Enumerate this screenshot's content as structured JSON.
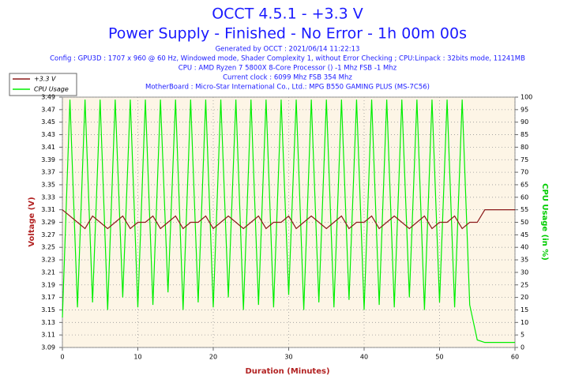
{
  "chart_data": {
    "type": "line",
    "title": "OCCT 4.5.1 - +3.3 V",
    "subtitle": "Power Supply - Finished - No Error - 1h 00m 00s",
    "notes": [
      "Generated by OCCT : 2021/06/14 11:22:13",
      "Config : GPU3D : 1707 x 960 @ 60 Hz, Windowed mode, Shader Complexity 1, without Error Checking ; CPU:Linpack : 32bits mode, 11241MB",
      "CPU : AMD Ryzen 7 5800X 8-Core Processor () -1 Mhz FSB -1 Mhz",
      "Current clock : 6099 Mhz FSB 354 Mhz",
      "MotherBoard : Micro-Star International Co., Ltd.: MPG B550 GAMING PLUS (MS-7C56)"
    ],
    "xlabel": "Duration (Minutes)",
    "ylabel": "Voltage (V)",
    "y2label": "CPU Usage (in %)",
    "x": [
      0,
      1,
      2,
      3,
      4,
      5,
      6,
      7,
      8,
      9,
      10,
      11,
      12,
      13,
      14,
      15,
      16,
      17,
      18,
      19,
      20,
      21,
      22,
      23,
      24,
      25,
      26,
      27,
      28,
      29,
      30,
      31,
      32,
      33,
      34,
      35,
      36,
      37,
      38,
      39,
      40,
      41,
      42,
      43,
      44,
      45,
      46,
      47,
      48,
      49,
      50,
      51,
      52,
      53,
      54,
      55,
      56,
      57,
      58,
      59,
      60
    ],
    "series": [
      {
        "name": "+3.3 V",
        "color": "#8b1a1a",
        "values": [
          3.31,
          3.3,
          3.29,
          3.28,
          3.3,
          3.29,
          3.28,
          3.29,
          3.3,
          3.28,
          3.29,
          3.29,
          3.3,
          3.28,
          3.29,
          3.3,
          3.28,
          3.29,
          3.29,
          3.3,
          3.28,
          3.29,
          3.3,
          3.29,
          3.28,
          3.29,
          3.3,
          3.28,
          3.29,
          3.29,
          3.3,
          3.28,
          3.29,
          3.3,
          3.29,
          3.28,
          3.29,
          3.3,
          3.28,
          3.29,
          3.29,
          3.3,
          3.28,
          3.29,
          3.3,
          3.29,
          3.28,
          3.29,
          3.3,
          3.28,
          3.29,
          3.29,
          3.3,
          3.28,
          3.29,
          3.29,
          3.31,
          3.31,
          3.31,
          3.31,
          3.31
        ]
      },
      {
        "name": "CPU Usage",
        "color": "#00ee00",
        "axis": "y2",
        "values": [
          12,
          99,
          16,
          99,
          18,
          99,
          15,
          99,
          20,
          99,
          16,
          99,
          17,
          99,
          22,
          99,
          15,
          99,
          18,
          99,
          16,
          99,
          20,
          99,
          15,
          99,
          17,
          99,
          16,
          99,
          21,
          99,
          15,
          99,
          18,
          99,
          16,
          99,
          19,
          99,
          15,
          99,
          17,
          99,
          16,
          99,
          20,
          99,
          15,
          99,
          18,
          99,
          16,
          99,
          17,
          3,
          2,
          2,
          2,
          2,
          2
        ]
      }
    ],
    "xlim": [
      0,
      60
    ],
    "xticks": [
      0,
      10,
      20,
      30,
      40,
      50,
      60
    ],
    "ylim": [
      3.09,
      3.49
    ],
    "yticks": [
      3.09,
      3.11,
      3.13,
      3.15,
      3.17,
      3.19,
      3.21,
      3.23,
      3.25,
      3.27,
      3.29,
      3.31,
      3.33,
      3.35,
      3.37,
      3.39,
      3.41,
      3.43,
      3.45,
      3.47,
      3.49
    ],
    "y2lim": [
      0,
      100
    ],
    "y2ticks": [
      0,
      5,
      10,
      15,
      20,
      25,
      30,
      35,
      40,
      45,
      50,
      55,
      60,
      65,
      70,
      75,
      80,
      85,
      90,
      95,
      100
    ],
    "grid": true,
    "legend": "upper left"
  }
}
